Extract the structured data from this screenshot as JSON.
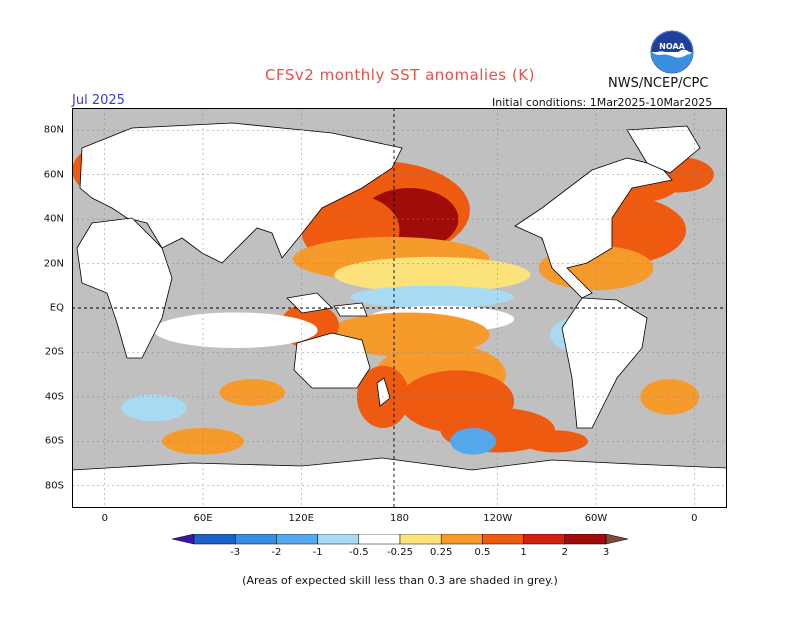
{
  "header": {
    "title": "CFSv2 monthly SST anomalies (K)",
    "month": "Jul 2025",
    "agency": "NWS/NCEP/CPC",
    "initial_conditions": "Initial conditions: 1Mar2025-10Mar2025",
    "logo_text": "NOAA"
  },
  "map": {
    "latitude_labels": [
      "80N",
      "60N",
      "40N",
      "20N",
      "EQ",
      "20S",
      "40S",
      "60S",
      "80S"
    ],
    "longitude_labels": [
      "0",
      "60E",
      "120E",
      "180",
      "120W",
      "60W",
      "0"
    ],
    "lat_values": [
      80,
      60,
      40,
      20,
      0,
      -20,
      -40,
      -60,
      -80
    ],
    "lon_values": [
      0,
      60,
      120,
      180,
      240,
      300,
      360
    ],
    "lon_range": [
      -20,
      380
    ],
    "lat_range": [
      -90,
      90
    ],
    "ocean_color": "#c0c0c0",
    "land_color": "#ffffff",
    "anomalies": [
      {
        "lon": 168,
        "lat": 44,
        "w": 55,
        "h": 22,
        "level": "1-2"
      },
      {
        "lon": 186,
        "lat": 40,
        "w": 30,
        "h": 14,
        "level": "2-3"
      },
      {
        "lon": 150,
        "lat": 35,
        "w": 30,
        "h": 16,
        "level": "1-2"
      },
      {
        "lon": 175,
        "lat": 22,
        "w": 60,
        "h": 10,
        "level": "0.5-1"
      },
      {
        "lon": 200,
        "lat": 15,
        "w": 60,
        "h": 8,
        "level": "0.25-0.5"
      },
      {
        "lon": 200,
        "lat": 5,
        "w": 50,
        "h": 5,
        "level": "-0.5--0.25"
      },
      {
        "lon": 205,
        "lat": -5,
        "w": 45,
        "h": 6,
        "level": "-0.25-0.25"
      },
      {
        "lon": 185,
        "lat": -12,
        "w": 50,
        "h": 10,
        "level": "0.5-1"
      },
      {
        "lon": 205,
        "lat": -30,
        "w": 40,
        "h": 14,
        "level": "0.5-1"
      },
      {
        "lon": 215,
        "lat": -42,
        "w": 35,
        "h": 14,
        "level": "1-2"
      },
      {
        "lon": 240,
        "lat": -55,
        "w": 35,
        "h": 10,
        "level": "1-2"
      },
      {
        "lon": 225,
        "lat": -60,
        "w": 14,
        "h": 6,
        "level": "-1--0.5"
      },
      {
        "lon": 170,
        "lat": -40,
        "w": 16,
        "h": 14,
        "level": "1-2"
      },
      {
        "lon": 125,
        "lat": -8,
        "w": 18,
        "h": 10,
        "level": "1-2"
      },
      {
        "lon": 310,
        "lat": 35,
        "w": 45,
        "h": 16,
        "level": "1-2"
      },
      {
        "lon": 300,
        "lat": 18,
        "w": 35,
        "h": 10,
        "level": "0.5-1"
      },
      {
        "lon": 320,
        "lat": 55,
        "w": 30,
        "h": 8,
        "level": "1-2"
      },
      {
        "lon": 15,
        "lat": 62,
        "w": 35,
        "h": 14,
        "level": "1-2"
      },
      {
        "lon": 350,
        "lat": 60,
        "w": 22,
        "h": 8,
        "level": "1-2"
      },
      {
        "lon": 290,
        "lat": -12,
        "w": 18,
        "h": 8,
        "level": "-0.5--0.25"
      },
      {
        "lon": 80,
        "lat": -10,
        "w": 50,
        "h": 8,
        "level": "-0.25-0.25"
      },
      {
        "lon": 90,
        "lat": -38,
        "w": 20,
        "h": 6,
        "level": "0.5-1"
      },
      {
        "lon": 60,
        "lat": -60,
        "w": 25,
        "h": 6,
        "level": "0.5-1"
      },
      {
        "lon": 30,
        "lat": -45,
        "w": 20,
        "h": 6,
        "level": "-0.5--0.25"
      },
      {
        "lon": 345,
        "lat": -40,
        "w": 18,
        "h": 8,
        "level": "0.5-1"
      },
      {
        "lon": 275,
        "lat": -60,
        "w": 20,
        "h": 5,
        "level": "1-2"
      }
    ]
  },
  "colorbar": {
    "ticks": [
      "-3",
      "-2",
      "-1",
      "-0.5",
      "-0.25",
      "0.25",
      "0.5",
      "1",
      "2",
      "3"
    ],
    "colors": [
      "#3a17a6",
      "#1c62c8",
      "#3a8ee0",
      "#55a8ec",
      "#a8daf4",
      "#ffffff",
      "#fce27a",
      "#f79a2c",
      "#ef5a11",
      "#d31f10",
      "#a00c09",
      "#7e4a3a"
    ]
  },
  "footnote": "(Areas of expected skill less than 0.3 are shaded in grey.)"
}
